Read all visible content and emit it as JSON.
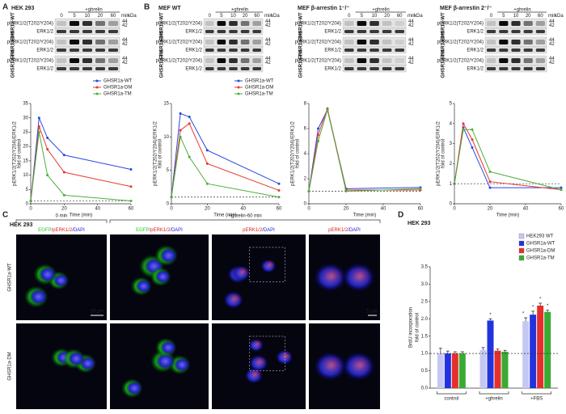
{
  "panel_labels": [
    "A",
    "B",
    "C",
    "D"
  ],
  "blots": [
    {
      "title": "HEK 293",
      "treatment": "+ghrelin",
      "lanes": [
        "0",
        "5",
        "10",
        "20",
        "60"
      ],
      "time_unit": "min",
      "kda_unit": "kDa",
      "kda": [
        "44",
        "42"
      ],
      "groups": [
        {
          "name": "GHSR1a-WT",
          "rows": [
            "pERK1/2(T202/Y204)",
            "ERK1/2"
          ]
        },
        {
          "name": "GHSR1a-DM",
          "rows": [
            "pERK1/2(T202/Y204)",
            "ERK1/2"
          ]
        },
        {
          "name": "GHSR1a-TM",
          "rows": [
            "pERK1/2(T202/Y204)",
            "ERK1/2"
          ]
        }
      ]
    },
    {
      "title": "MEF WT",
      "treatment": "+ghrelin",
      "lanes": [
        "0",
        "5",
        "10",
        "20",
        "60"
      ],
      "time_unit": "min",
      "kda_unit": "kDa",
      "kda": [
        "44",
        "42"
      ],
      "groups": [
        {
          "name": "GHSR1a-WT",
          "rows": [
            "pERK1/2(T202/Y204)",
            "ERK1/2"
          ]
        },
        {
          "name": "GHSR1a-DM",
          "rows": [
            "pERK1/2(T202/Y204)",
            "ERK1/2"
          ]
        },
        {
          "name": "GHSR1a-TM",
          "rows": [
            "pERK1/2(T202/Y204)",
            "ERK1/2"
          ]
        }
      ]
    },
    {
      "title": "MEF β-arrestin 1⁻/⁻",
      "treatment": "+ghrelin",
      "lanes": [
        "0",
        "5",
        "10",
        "20",
        "60"
      ],
      "time_unit": "min",
      "kda_unit": "kDa",
      "kda": [
        "44",
        "42"
      ],
      "groups": [
        {
          "name": "GHSR1a-WT",
          "rows": [
            "pERK1/2(T202/Y204)",
            "ERK1/2"
          ]
        },
        {
          "name": "GHSR1a-DM",
          "rows": [
            "pERK1/2(T202/Y204)",
            "ERK1/2"
          ]
        },
        {
          "name": "GHSR1a-TM",
          "rows": [
            "pERK1/2(T202/Y204)",
            "ERK1/2"
          ]
        }
      ]
    },
    {
      "title": "MEF β-arrestin 2⁻/⁻",
      "treatment": "+ghrelin",
      "lanes": [
        "0",
        "5",
        "10",
        "20",
        "60"
      ],
      "time_unit": "min",
      "kda_unit": "kDa",
      "kda": [
        "44",
        "42"
      ],
      "groups": [
        {
          "name": "GHSR1a-WT",
          "rows": [
            "pERK1/2(T202/Y204)",
            "ERK1/2"
          ]
        },
        {
          "name": "GHSR1a-DM",
          "rows": [
            "pERK1/2(T202/Y204)",
            "ERK1/2"
          ]
        },
        {
          "name": "GHSR1a-TM",
          "rows": [
            "pERK1/2(T202/Y204)",
            "ERK1/2"
          ]
        }
      ]
    }
  ],
  "chart_data": [
    {
      "type": "line",
      "x": [
        0,
        5,
        10,
        20,
        60
      ],
      "xlim": [
        0,
        60
      ],
      "xticks": [
        0,
        20,
        40,
        60
      ],
      "ylim": [
        0,
        35
      ],
      "yticks": [
        0,
        5,
        10,
        15,
        20,
        25,
        30,
        35
      ],
      "x_label": "Time (min)",
      "y_label": [
        "pERK1/2(T202/Y204)/ERK1/2",
        "fold of control"
      ],
      "reference_line": 1,
      "series": [
        {
          "name": "GHSR1a-WT",
          "color": "#2a46e0",
          "values": [
            1,
            30,
            23,
            17,
            12
          ]
        },
        {
          "name": "GHSR1a-DM",
          "color": "#e8372c",
          "values": [
            1,
            27,
            19,
            11,
            6
          ]
        },
        {
          "name": "GHSR1a-TM",
          "color": "#4cae3c",
          "values": [
            1,
            25,
            10,
            3,
            1
          ]
        }
      ]
    },
    {
      "type": "line",
      "x": [
        0,
        5,
        10,
        20,
        60
      ],
      "xlim": [
        0,
        60
      ],
      "xticks": [
        0,
        20,
        40,
        60
      ],
      "ylim": [
        0,
        15
      ],
      "yticks": [
        0,
        5,
        10,
        15
      ],
      "x_label": "Time (min)",
      "y_label": [
        "pERK1/2(T202/Y204)/ERK1/2",
        "fold of control"
      ],
      "reference_line": 1,
      "series": [
        {
          "name": "GHSR1a-WT",
          "color": "#2a46e0",
          "values": [
            1,
            13.5,
            13,
            8,
            3
          ]
        },
        {
          "name": "GHSR1a-DM",
          "color": "#e8372c",
          "values": [
            1,
            11,
            12,
            6,
            2
          ]
        },
        {
          "name": "GHSR1a-TM",
          "color": "#4cae3c",
          "values": [
            1,
            10,
            7,
            3,
            1
          ]
        }
      ]
    },
    {
      "type": "line",
      "x": [
        0,
        5,
        10,
        20,
        60
      ],
      "xlim": [
        0,
        60
      ],
      "xticks": [
        0,
        20,
        40,
        60
      ],
      "ylim": [
        0,
        8
      ],
      "yticks": [
        0,
        2,
        4,
        6,
        8
      ],
      "x_label": "Time (min)",
      "y_label": [
        "pERK1/2(T202/Y204)/ERK1/2",
        "fold of control"
      ],
      "reference_line": 1,
      "series": [
        {
          "color": "#2a46e0",
          "values": [
            1,
            6,
            7.5,
            1.2,
            1.3
          ]
        },
        {
          "color": "#e8372c",
          "values": [
            1,
            5.5,
            7.6,
            1.1,
            1.1
          ]
        },
        {
          "color": "#4cae3c",
          "values": [
            1,
            5,
            7.5,
            1,
            1.2
          ]
        }
      ]
    },
    {
      "type": "line",
      "x": [
        0,
        5,
        10,
        20,
        60
      ],
      "xlim": [
        0,
        60
      ],
      "xticks": [
        0,
        20,
        40,
        60
      ],
      "ylim": [
        0,
        5
      ],
      "yticks": [
        0,
        1,
        2,
        3,
        4,
        5
      ],
      "x_label": "Time (min)",
      "y_label": [
        "pERK1/2(T202/Y204)/ERK1/2",
        "fold of control"
      ],
      "reference_line": 1,
      "series": [
        {
          "color": "#2a46e0",
          "values": [
            1,
            3.8,
            2.8,
            0.8,
            0.8
          ]
        },
        {
          "color": "#e8372c",
          "values": [
            1,
            4,
            3.2,
            1.1,
            0.7
          ]
        },
        {
          "color": "#4cae3c",
          "values": [
            1,
            3.7,
            3.7,
            1.6,
            0.7
          ]
        }
      ]
    },
    {
      "type": "bar",
      "title": "HEK 293",
      "y_label": [
        "BrdU incorporation",
        "fold of control"
      ],
      "categories": [
        "control",
        "+ghrelin",
        "+FBS"
      ],
      "ylim": [
        0,
        3.5
      ],
      "yticks": [
        {
          "value": 0,
          "label": "0.0"
        },
        0.5,
        {
          "value": 1,
          "label": "1.0"
        },
        1.5,
        {
          "value": 2,
          "label": "2.0"
        },
        2.5,
        {
          "value": 3,
          "label": "3.0"
        },
        3.5
      ],
      "reference_line": 1,
      "legend": "upper right",
      "series": [
        {
          "name": "HEK293 WT",
          "color": "#c5c8f2",
          "values": [
            1,
            1.1,
            1.93
          ],
          "errors": [
            0.15,
            0.07,
            0.1
          ],
          "annotations": [
            null,
            null,
            "*"
          ]
        },
        {
          "name": "GHSR1a-WT",
          "color": "#2233dd",
          "values": [
            1,
            1.95,
            2.12
          ],
          "errors": [
            0.07,
            0.05,
            0.1
          ],
          "annotations": [
            null,
            "*",
            "*"
          ]
        },
        {
          "name": "GHSR1a-DM",
          "color": "#e5302a",
          "values": [
            1,
            1.08,
            2.38
          ],
          "errors": [
            0.05,
            0.05,
            0.07
          ],
          "annotations": [
            null,
            null,
            "*"
          ]
        },
        {
          "name": "GHSR1a-TM",
          "color": "#3aaa35",
          "values": [
            1,
            1.05,
            2.2
          ],
          "errors": [
            0.05,
            0.04,
            0.05
          ],
          "annotations": [
            null,
            null,
            "*"
          ]
        }
      ]
    }
  ],
  "microscopy": {
    "title": "HEK 293",
    "conditions": [
      "0 min",
      "+ghrelin-60 min"
    ],
    "columns": [
      [
        {
          "text": "EGFP",
          "color": "#22cc22"
        },
        {
          "text": "/pERK1/2",
          "color": "#e02020"
        },
        {
          "text": "/DAPI",
          "color": "#2222dd"
        }
      ],
      [
        {
          "text": "EGFP",
          "color": "#22cc22"
        },
        {
          "text": "/pERK1/2",
          "color": "#e02020"
        },
        {
          "text": "/DAPI",
          "color": "#2222dd"
        }
      ],
      [
        {
          "text": "pERK1/2",
          "color": "#e02020"
        },
        {
          "text": "/DAPI",
          "color": "#2222dd"
        }
      ],
      [
        {
          "text": "pERK1/2",
          "color": "#e02020"
        },
        {
          "text": "/DAPI",
          "color": "#2222dd"
        }
      ]
    ],
    "rows": [
      "GHSR1a-WT",
      "GHSR1a-DM"
    ],
    "scale_bars": [
      "10 μm",
      "5 μm"
    ]
  }
}
